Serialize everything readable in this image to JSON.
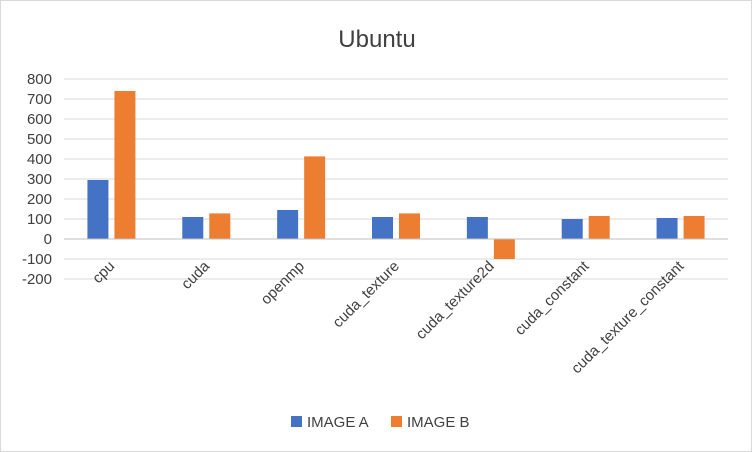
{
  "chart_data": {
    "type": "bar",
    "title": "Ubuntu",
    "xlabel": "",
    "ylabel": "",
    "categories": [
      "cpu",
      "cuda",
      "openmp",
      "cuda_texture",
      "cuda_texture2d",
      "cuda_constant",
      "cuda_texture_constant"
    ],
    "series": [
      {
        "name": "IMAGE A",
        "color": "#4472c4",
        "values": [
          295,
          110,
          145,
          110,
          110,
          100,
          105
        ]
      },
      {
        "name": "IMAGE B",
        "color": "#ed7d31",
        "values": [
          740,
          128,
          413,
          128,
          -100,
          115,
          115
        ]
      }
    ],
    "ylim": [
      -200,
      800
    ],
    "yticks": [
      -200,
      -100,
      0,
      100,
      200,
      300,
      400,
      500,
      600,
      700,
      800
    ],
    "grid": true,
    "legend": "bottom"
  }
}
